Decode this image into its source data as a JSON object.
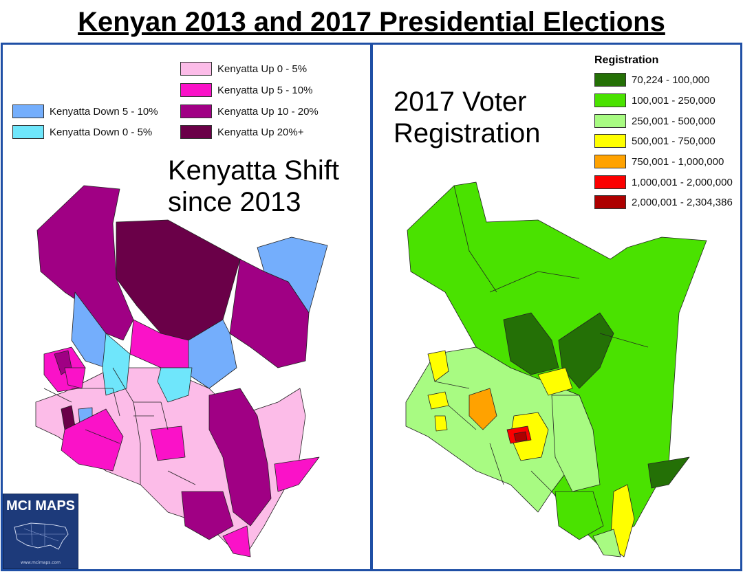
{
  "title": "Kenyan 2013 and 2017 Presidential Elections",
  "left_panel": {
    "label_line1": "Kenyatta Shift",
    "label_line2": "since 2013",
    "legend": [
      {
        "label": "Kenyatta Down 5 - 10%",
        "color": "#74aefc"
      },
      {
        "label": "Kenyatta Down 0 - 5%",
        "color": "#6fe6fb"
      },
      {
        "label": "Kenyatta Up 0 - 5%",
        "color": "#fcbce8"
      },
      {
        "label": "Kenyatta Up 5 - 10%",
        "color": "#fa12c8"
      },
      {
        "label": "Kenyatta Up 10 - 20%",
        "color": "#a00084"
      },
      {
        "label": "Kenyatta Up 20%+",
        "color": "#6a0048"
      }
    ]
  },
  "right_panel": {
    "label_line1": "2017 Voter",
    "label_line2": "Registration",
    "legend_title": "Registration",
    "legend": [
      {
        "label": "70,224 - 100,000",
        "color": "#247006"
      },
      {
        "label": "100,001 - 250,000",
        "color": "#4ae200"
      },
      {
        "label": "250,001 - 500,000",
        "color": "#a8fb82"
      },
      {
        "label": "500,001 - 750,000",
        "color": "#ffff00"
      },
      {
        "label": "750,001 - 1,000,000",
        "color": "#ffa200"
      },
      {
        "label": "1,000,001 - 2,000,000",
        "color": "#fb0000"
      },
      {
        "label": "2,000,001 - 2,304,386",
        "color": "#ad0000"
      }
    ]
  },
  "logo": {
    "text": "MCI MAPS",
    "url": "www.mcimaps.com",
    "color": "#1d3a7a"
  }
}
